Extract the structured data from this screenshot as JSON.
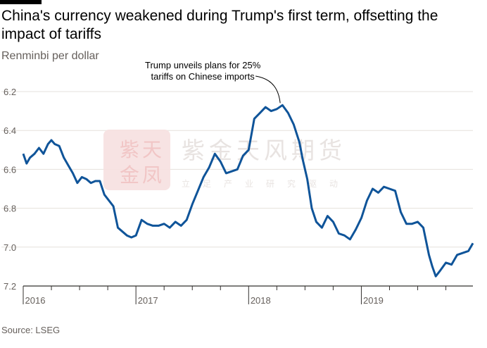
{
  "title": "China's currency weakened during Trump's first term, offsetting the impact of tariffs",
  "subtitle": "Renminbi per dollar",
  "source": "Source: LSEG",
  "annotation": {
    "lines": [
      "Trump unveils plans for 25%",
      "tariffs on Chinese imports"
    ],
    "x": 2018.28,
    "y": 6.27
  },
  "watermark": {
    "logo_chars": [
      "紫",
      "天",
      "金",
      "凤"
    ],
    "name": "紫金天风期货",
    "tagline": "立足产业研究驱动"
  },
  "colors": {
    "line": "#0f5499",
    "grid": "#e6e1dc",
    "axis": "#33302e",
    "watermark_logo": "#f3cfcf"
  },
  "chart_data": {
    "type": "line",
    "title": "China's currency weakened during Trump's first term, offsetting the impact of tariffs",
    "ylabel": "Renminbi per dollar",
    "y_inverted": true,
    "ylim": [
      6.2,
      7.2
    ],
    "xlim": [
      2016.0,
      2019.99
    ],
    "y_ticks": [
      6.2,
      6.4,
      6.6,
      6.8,
      7.0,
      7.2
    ],
    "y_tick_labels": [
      "6.2",
      "6.4",
      "6.6",
      "6.8",
      "7.0",
      "7.2"
    ],
    "x_ticks": [
      2016,
      2017,
      2018,
      2019
    ],
    "x_tick_labels": [
      "2016",
      "2017",
      "2018",
      "2019"
    ],
    "grid": "horizontal",
    "series": [
      {
        "x": [
          2016.0,
          2016.03,
          2016.06,
          2016.1,
          2016.14,
          2016.18,
          2016.22,
          2016.25,
          2016.28,
          2016.32,
          2016.36,
          2016.4,
          2016.44,
          2016.48,
          2016.52,
          2016.56,
          2016.6,
          2016.64,
          2016.68,
          2016.72,
          2016.76,
          2016.8,
          2016.84,
          2016.88,
          2016.92,
          2016.96,
          2017.0,
          2017.05,
          2017.1,
          2017.15,
          2017.2,
          2017.25,
          2017.3,
          2017.35,
          2017.4,
          2017.45,
          2017.5,
          2017.55,
          2017.6,
          2017.65,
          2017.7,
          2017.75,
          2017.8,
          2017.85,
          2017.9,
          2017.95,
          2018.0,
          2018.05,
          2018.1,
          2018.15,
          2018.2,
          2018.25,
          2018.3,
          2018.35,
          2018.4,
          2018.45,
          2018.48,
          2018.52,
          2018.56,
          2018.6,
          2018.65,
          2018.7,
          2018.75,
          2018.8,
          2018.85,
          2018.9,
          2018.95,
          2019.0,
          2019.05,
          2019.1,
          2019.15,
          2019.2,
          2019.25,
          2019.3,
          2019.35,
          2019.4,
          2019.45,
          2019.5,
          2019.55,
          2019.6,
          2019.63,
          2019.66,
          2019.7,
          2019.75,
          2019.8,
          2019.85,
          2019.9,
          2019.95,
          2019.99
        ],
        "values": [
          6.52,
          6.57,
          6.54,
          6.52,
          6.49,
          6.52,
          6.47,
          6.45,
          6.47,
          6.48,
          6.54,
          6.58,
          6.62,
          6.67,
          6.64,
          6.65,
          6.67,
          6.66,
          6.66,
          6.73,
          6.76,
          6.79,
          6.9,
          6.92,
          6.94,
          6.95,
          6.94,
          6.86,
          6.88,
          6.89,
          6.89,
          6.88,
          6.9,
          6.87,
          6.89,
          6.86,
          6.78,
          6.71,
          6.64,
          6.59,
          6.52,
          6.56,
          6.62,
          6.61,
          6.6,
          6.53,
          6.5,
          6.34,
          6.31,
          6.28,
          6.3,
          6.29,
          6.27,
          6.31,
          6.37,
          6.46,
          6.55,
          6.65,
          6.8,
          6.87,
          6.9,
          6.84,
          6.87,
          6.93,
          6.94,
          6.96,
          6.91,
          6.85,
          6.76,
          6.7,
          6.72,
          6.69,
          6.7,
          6.71,
          6.82,
          6.88,
          6.88,
          6.87,
          6.9,
          7.04,
          7.1,
          7.15,
          7.12,
          7.08,
          7.09,
          7.04,
          7.03,
          7.02,
          6.98
        ]
      }
    ]
  }
}
